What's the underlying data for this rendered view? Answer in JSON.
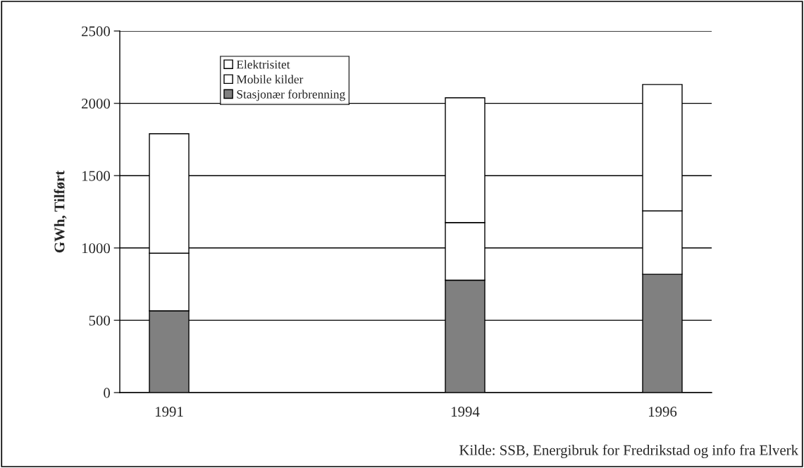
{
  "chart_data": {
    "type": "bar",
    "stacked": true,
    "ylabel": "GWh, Tilført",
    "categories": [
      "1991",
      null,
      null,
      "1994",
      null,
      "1996"
    ],
    "series": [
      {
        "name": "Stasjonær forbrenning",
        "color": "#808080",
        "values": [
          565,
          null,
          null,
          777,
          null,
          818
        ]
      },
      {
        "name": "Mobile kilder",
        "color": "#ffffff",
        "values": [
          399,
          null,
          null,
          399,
          null,
          438
        ]
      },
      {
        "name": "Elektrisitet",
        "color": "#ffffff",
        "values": [
          826,
          null,
          null,
          862,
          null,
          874
        ]
      }
    ],
    "ylim": [
      0,
      2500
    ],
    "yticks": [
      0,
      500,
      1000,
      1500,
      2000,
      2500
    ],
    "grid": "y",
    "legend": "top left",
    "annotations": [
      "Kilde: SSB, Energibruk for Fredrikstad og info fra Elverk"
    ]
  }
}
